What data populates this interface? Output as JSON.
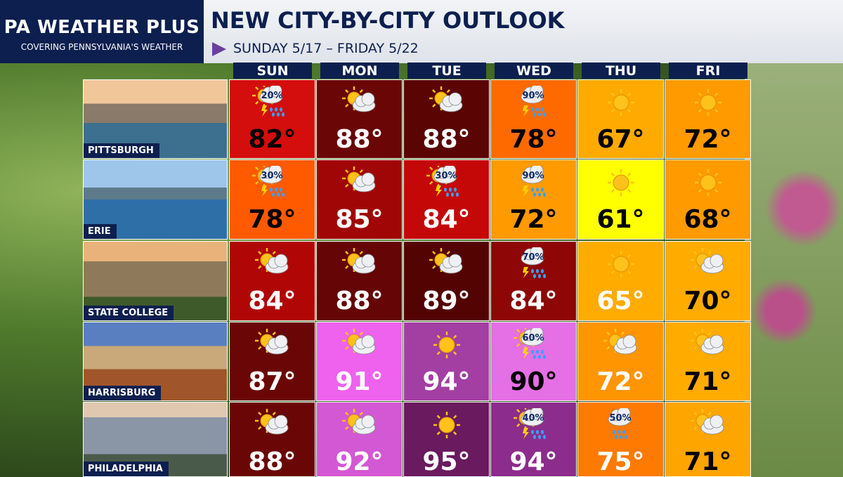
{
  "header": {
    "brand": "PA WEATHER PLUS",
    "tagline": "COVERING PENNSYLVANIA'S WEATHER",
    "title": "NEW CITY-BY-CITY OUTLOOK",
    "subtitle": "SUNDAY 5/17 – FRIDAY 5/22"
  },
  "days": [
    "SUN",
    "MON",
    "TUE",
    "WED",
    "THU",
    "FRI"
  ],
  "cities": [
    {
      "name": "PITTSBURGH",
      "forecast": [
        {
          "temp": "82°",
          "icon": "storm",
          "precip": "20%",
          "color": "#d40d0d",
          "text_color": "#000000"
        },
        {
          "temp": "88°",
          "icon": "partly-cloudy",
          "color": "#6a0606",
          "text_color": "#ffffff"
        },
        {
          "temp": "88°",
          "icon": "partly-cloudy",
          "color": "#5a0404",
          "text_color": "#ffffff"
        },
        {
          "temp": "78°",
          "icon": "storm-cloud",
          "precip": "90%",
          "color": "#ff6a00",
          "text_color": "#000000"
        },
        {
          "temp": "67°",
          "icon": "sun",
          "color": "#ffaa00",
          "text_color": "#000000"
        },
        {
          "temp": "72°",
          "icon": "sun",
          "color": "#ff9a00",
          "text_color": "#000000"
        }
      ]
    },
    {
      "name": "ERIE",
      "forecast": [
        {
          "temp": "78°",
          "icon": "storm",
          "precip": "30%",
          "color": "#ff5a00",
          "text_color": "#000000"
        },
        {
          "temp": "85°",
          "icon": "partly-cloudy",
          "color": "#a00606",
          "text_color": "#ffffff"
        },
        {
          "temp": "84°",
          "icon": "storm",
          "precip": "30%",
          "color": "#c40808",
          "text_color": "#ffffff"
        },
        {
          "temp": "72°",
          "icon": "storm-cloud",
          "precip": "90%",
          "color": "#ff9a00",
          "text_color": "#000000"
        },
        {
          "temp": "61°",
          "icon": "sun",
          "color": "#ffff00",
          "text_color": "#000000"
        },
        {
          "temp": "68°",
          "icon": "sun",
          "color": "#ff9a00",
          "text_color": "#000000"
        }
      ]
    },
    {
      "name": "STATE COLLEGE",
      "forecast": [
        {
          "temp": "84°",
          "icon": "partly-cloudy",
          "color": "#b00606",
          "text_color": "#ffffff"
        },
        {
          "temp": "88°",
          "icon": "partly-cloudy",
          "color": "#650505",
          "text_color": "#ffffff"
        },
        {
          "temp": "89°",
          "icon": "partly-cloudy",
          "color": "#540303",
          "text_color": "#ffffff"
        },
        {
          "temp": "84°",
          "icon": "storm-cloud",
          "precip": "70%",
          "color": "#8e0606",
          "text_color": "#ffffff"
        },
        {
          "temp": "65°",
          "icon": "sun",
          "color": "#ffab00",
          "text_color": "#ffffff"
        },
        {
          "temp": "70°",
          "icon": "partly-cloudy",
          "color": "#ffab00",
          "text_color": "#000000"
        }
      ]
    },
    {
      "name": "HARRISBURG",
      "forecast": [
        {
          "temp": "87°",
          "icon": "partly-cloudy",
          "color": "#6a0606",
          "text_color": "#ffffff"
        },
        {
          "temp": "91°",
          "icon": "partly-cloudy",
          "color": "#ee62ee",
          "text_color": "#ffffff"
        },
        {
          "temp": "94°",
          "icon": "sun",
          "color": "#a33ea3",
          "text_color": "#ffffff"
        },
        {
          "temp": "90°",
          "icon": "storm",
          "precip": "60%",
          "color": "#e56fe5",
          "text_color": "#000000"
        },
        {
          "temp": "72°",
          "icon": "partly-cloudy",
          "color": "#ff9500",
          "text_color": "#ffffff"
        },
        {
          "temp": "71°",
          "icon": "partly-cloudy",
          "color": "#ffab00",
          "text_color": "#000000"
        }
      ]
    },
    {
      "name": "PHILADELPHIA",
      "forecast": [
        {
          "temp": "88°",
          "icon": "partly-cloudy",
          "color": "#6a0606",
          "text_color": "#ffffff"
        },
        {
          "temp": "92°",
          "icon": "partly-cloudy",
          "color": "#d358d3",
          "text_color": "#ffffff"
        },
        {
          "temp": "95°",
          "icon": "sun",
          "color": "#6a1a5e",
          "text_color": "#ffffff"
        },
        {
          "temp": "94°",
          "icon": "storm",
          "precip": "40%",
          "color": "#8c2c8c",
          "text_color": "#ffffff"
        },
        {
          "temp": "75°",
          "icon": "rain",
          "precip": "50%",
          "color": "#ff7a00",
          "text_color": "#ffffff"
        },
        {
          "temp": "71°",
          "icon": "partly-cloudy",
          "color": "#ffa500",
          "text_color": "#000000"
        }
      ]
    }
  ]
}
